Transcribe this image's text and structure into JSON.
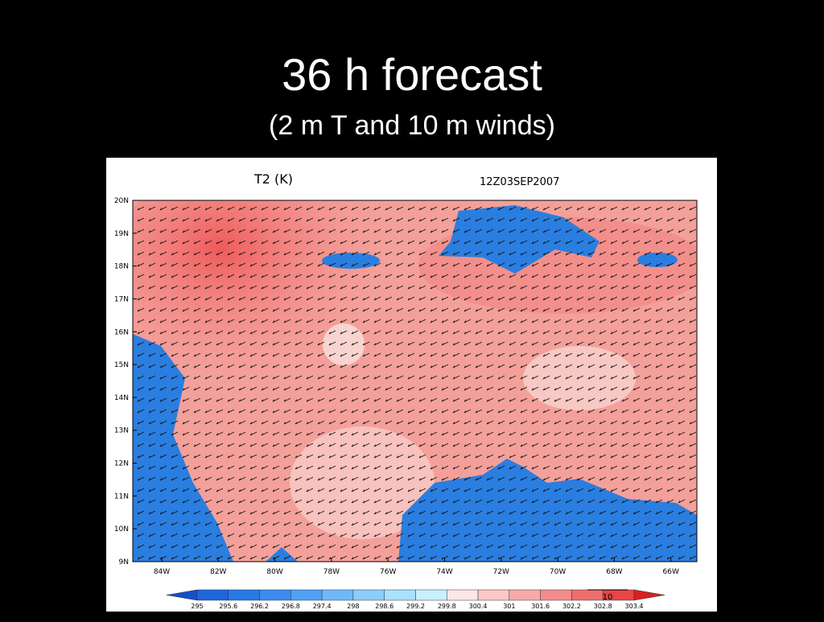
{
  "header": {
    "title": "36 h forecast",
    "subtitle": "(2 m T and 10 m winds)"
  },
  "map": {
    "field_label": "T2 (K)",
    "valid_time": "12Z03SEP2007",
    "lat_labels": [
      "20N",
      "19N",
      "18N",
      "17N",
      "16N",
      "15N",
      "14N",
      "13N",
      "12N",
      "11N",
      "10N",
      "9N"
    ],
    "lon_labels": [
      "84W",
      "82W",
      "80W",
      "78W",
      "76W",
      "74W",
      "72W",
      "70W",
      "68W",
      "66W"
    ],
    "vector_reference": "10"
  },
  "colorbar": {
    "labels": [
      "295",
      "295.6",
      "296.2",
      "296.8",
      "297.4",
      "298",
      "298.6",
      "299.2",
      "299.8",
      "300.4",
      "301",
      "301.6",
      "302.2",
      "302.8",
      "303.4"
    ]
  }
}
